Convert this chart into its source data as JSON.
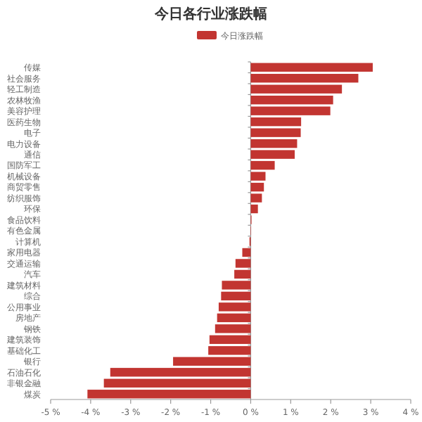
{
  "chart_data": {
    "type": "bar",
    "orientation": "horizontal",
    "title": "今日各行业涨跌幅",
    "legend": "top",
    "categories": [
      "传媒",
      "社会服务",
      "轻工制造",
      "农林牧渔",
      "美容护理",
      "医药生物",
      "电子",
      "电力设备",
      "通信",
      "国防军工",
      "机械设备",
      "商贸零售",
      "纺织服饰",
      "环保",
      "食品饮料",
      "有色金属",
      "计算机",
      "家用电器",
      "交通运输",
      "汽车",
      "建筑材料",
      "综合",
      "公用事业",
      "房地产",
      "钢铁",
      "建筑装饰",
      "基础化工",
      "银行",
      "石油石化",
      "非银金融",
      "煤炭"
    ],
    "series": [
      {
        "name": "今日涨跌幅",
        "color": "#c23531",
        "values": [
          3.05,
          2.69,
          2.28,
          2.06,
          1.99,
          1.26,
          1.25,
          1.16,
          1.1,
          0.6,
          0.37,
          0.33,
          0.28,
          0.18,
          0.02,
          0.01,
          -0.03,
          -0.21,
          -0.38,
          -0.41,
          -0.72,
          -0.74,
          -0.8,
          -0.84,
          -0.89,
          -1.03,
          -1.06,
          -1.94,
          -3.51,
          -3.67,
          -4.08
        ]
      }
    ],
    "xlim": [
      -5,
      4
    ],
    "xticks": [
      {
        "value": -5,
        "label": "-5 %"
      },
      {
        "value": -4,
        "label": "-4 %"
      },
      {
        "value": -3,
        "label": "-3 %"
      },
      {
        "value": -2,
        "label": "-2 %"
      },
      {
        "value": -1,
        "label": "-1 %"
      },
      {
        "value": 0,
        "label": "0 %"
      },
      {
        "value": 1,
        "label": "1 %"
      },
      {
        "value": 2,
        "label": "2 %"
      },
      {
        "value": 3,
        "label": "3 %"
      },
      {
        "value": 4,
        "label": "4 %"
      }
    ]
  }
}
